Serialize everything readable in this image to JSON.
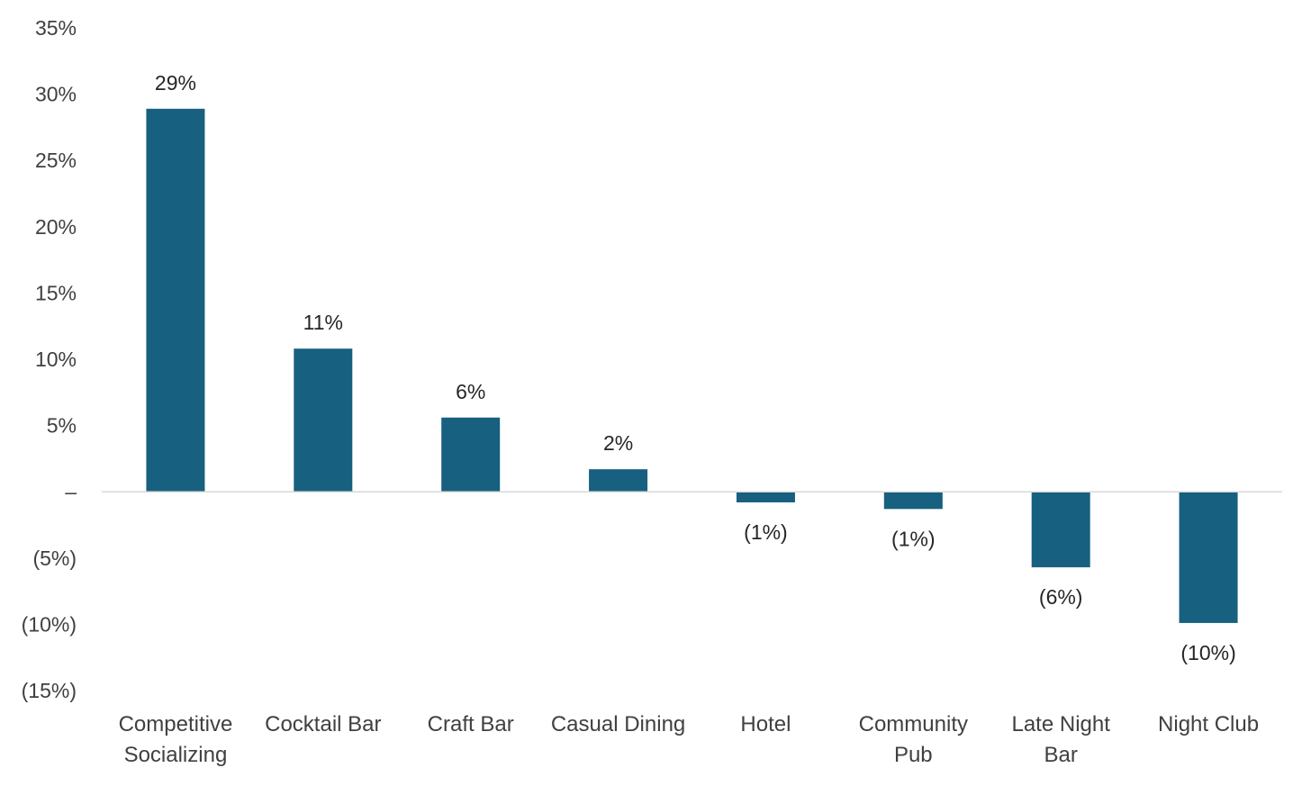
{
  "chart_data": {
    "type": "bar",
    "categories": [
      [
        "Competitive",
        "Socializing"
      ],
      [
        "Cocktail Bar"
      ],
      [
        "Craft Bar"
      ],
      [
        "Casual Dining"
      ],
      [
        "Hotel"
      ],
      [
        "Community",
        "Pub"
      ],
      [
        "Late Night",
        "Bar"
      ],
      [
        "Night Club"
      ]
    ],
    "series": [
      {
        "values": [
          28.9,
          10.8,
          5.6,
          1.7,
          -0.8,
          -1.3,
          -5.7,
          -9.9
        ],
        "labels": [
          "29%",
          "11%",
          "6%",
          "2%",
          "(1%)",
          "(1%)",
          "(6%)",
          "(10%)"
        ]
      }
    ],
    "ylim": [
      -15,
      35
    ],
    "y_ticks": [
      35,
      30,
      25,
      20,
      15,
      10,
      5,
      0,
      -5,
      -10,
      -15
    ],
    "y_tick_labels": [
      "35%",
      "30%",
      "25%",
      "20%",
      "15%",
      "10%",
      "5%",
      "–",
      "(5%)",
      "(10%)",
      "(15%)"
    ],
    "title": "",
    "xlabel": "",
    "ylabel": "",
    "grid": false,
    "legend": "none",
    "colors": {
      "bar": "#17607f",
      "baseline": "#d9d9d9",
      "tick_text": "#404040",
      "data_label_text": "#262626"
    }
  }
}
